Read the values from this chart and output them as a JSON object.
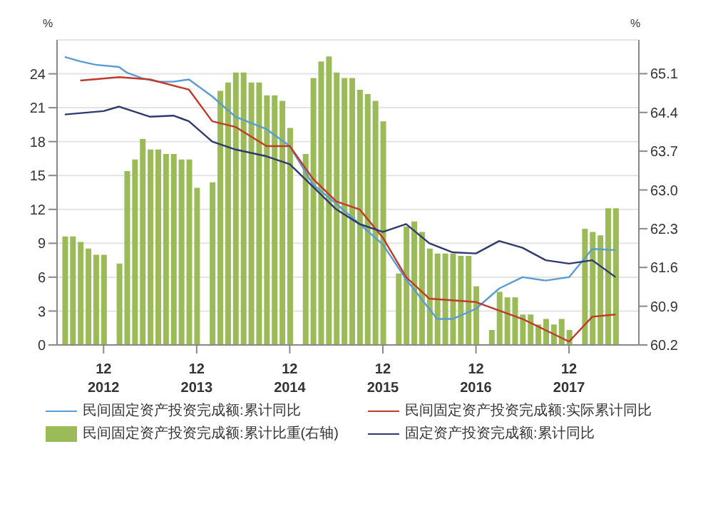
{
  "chart_data": {
    "type": "line",
    "ylabel": "%",
    "y2label": "%",
    "xlim": [
      "2012-06",
      "2018-09"
    ],
    "xticks": [
      {
        "value": "2012-12",
        "label": "12\n2012"
      },
      {
        "value": "2013-12",
        "label": "12\n2013"
      },
      {
        "value": "2014-12",
        "label": "12\n2014"
      },
      {
        "value": "2015-12",
        "label": "12\n2015"
      },
      {
        "value": "2016-12",
        "label": "12\n2016"
      },
      {
        "value": "2017-12",
        "label": "12\n2017"
      }
    ],
    "ylim": [
      0,
      27
    ],
    "yticks": [
      0,
      3,
      6,
      9,
      12,
      15,
      18,
      21,
      24
    ],
    "y2lim": [
      60.2,
      65.71
    ],
    "y2ticks": [
      60.2,
      60.9,
      61.6,
      62.3,
      {
        "value": 63,
        "label": "63.0"
      },
      63.7,
      64.4,
      65.1
    ],
    "grid": "y",
    "legend": "bottom",
    "marker": "none",
    "line_style": "solid",
    "series": [
      {
        "name": "民间固定资产投资完成额:累计同比",
        "color": "#5b9bd5",
        "x": [
          "2012-07",
          "2012-09",
          "2012-11",
          "2013-02",
          "2013-03",
          "2013-05",
          "2013-07",
          "2013-09",
          "2013-11",
          "2014-02",
          "2014-05",
          "2014-09",
          "2014-12",
          "2015-03",
          "2015-06",
          "2015-09",
          "2015-12",
          "2016-03",
          "2016-07",
          "2016-09",
          "2016-12",
          "2017-03",
          "2017-06",
          "2017-09",
          "2017-12",
          "2018-03",
          "2018-06"
        ],
        "values": [
          25.5,
          25.1,
          24.8,
          24.6,
          24.1,
          23.6,
          23.3,
          23.3,
          23.5,
          22.0,
          20.2,
          19.1,
          17.6,
          14.2,
          12.5,
          10.7,
          8.9,
          5.8,
          2.3,
          2.3,
          3.2,
          5.0,
          6.0,
          5.7,
          6.0,
          8.5,
          8.4
        ]
      },
      {
        "name": "民间固定资产投资完成额:实际累计同比",
        "color": "#c0392b",
        "x": [
          "2012-09",
          "2013-02",
          "2013-06",
          "2013-11",
          "2014-02",
          "2014-05",
          "2014-09",
          "2014-12",
          "2015-03",
          "2015-06",
          "2015-09",
          "2015-12",
          "2016-03",
          "2016-06",
          "2016-12",
          "2017-06",
          "2017-12",
          "2018-03",
          "2018-06"
        ],
        "values": [
          23.4,
          23.7,
          23.5,
          22.6,
          19.8,
          19.3,
          17.6,
          17.6,
          14.7,
          12.7,
          12.0,
          9.5,
          6.0,
          4.1,
          3.8,
          2.3,
          0.3,
          2.5,
          2.7
        ]
      },
      {
        "name": "民间固定资产投资完成额:累计比重(右轴)",
        "type": "bar",
        "axis": "y2",
        "color": "#9bbb59",
        "x": [
          "2012-07",
          "2012-08",
          "2012-09",
          "2012-10",
          "2012-11",
          "2012-12",
          "2013-02",
          "2013-03",
          "2013-04",
          "2013-05",
          "2013-06",
          "2013-07",
          "2013-08",
          "2013-09",
          "2013-10",
          "2013-11",
          "2013-12",
          "2014-02",
          "2014-03",
          "2014-04",
          "2014-05",
          "2014-06",
          "2014-07",
          "2014-08",
          "2014-09",
          "2014-10",
          "2014-11",
          "2014-12",
          "2015-02",
          "2015-03",
          "2015-04",
          "2015-05",
          "2015-06",
          "2015-07",
          "2015-08",
          "2015-09",
          "2015-10",
          "2015-11",
          "2015-12",
          "2016-02",
          "2016-03",
          "2016-04",
          "2016-05",
          "2016-06",
          "2016-07",
          "2016-08",
          "2016-09",
          "2016-10",
          "2016-11",
          "2016-12",
          "2017-02",
          "2017-03",
          "2017-04",
          "2017-05",
          "2017-06",
          "2017-07",
          "2017-08",
          "2017-09",
          "2017-10",
          "2017-11",
          "2017-12",
          "2018-02",
          "2018-03",
          "2018-04",
          "2018-05",
          "2018-06"
        ],
        "values": [
          62.16,
          62.16,
          62.06,
          61.94,
          61.83,
          61.83,
          61.67,
          63.34,
          63.55,
          63.92,
          63.73,
          63.73,
          63.65,
          63.65,
          63.55,
          63.55,
          63.04,
          63.14,
          64.79,
          64.94,
          65.12,
          65.12,
          64.94,
          64.94,
          64.71,
          64.71,
          64.61,
          64.12,
          63.65,
          65.02,
          65.32,
          65.41,
          65.12,
          65.02,
          65.02,
          64.81,
          64.73,
          64.61,
          64.24,
          61.49,
          62.34,
          62.43,
          62.24,
          61.94,
          61.85,
          61.85,
          61.85,
          61.81,
          61.81,
          61.26,
          60.47,
          61.16,
          61.06,
          61.06,
          60.75,
          60.75,
          60.57,
          60.67,
          60.57,
          60.67,
          60.47,
          62.3,
          62.24,
          62.18,
          62.67,
          62.67
        ]
      },
      {
        "name": "固定资产投资完成额:累计同比",
        "color": "#2e3a6e",
        "x": [
          "2012-07",
          "2012-12",
          "2013-02",
          "2013-06",
          "2013-09",
          "2013-11",
          "2014-02",
          "2014-05",
          "2014-09",
          "2014-12",
          "2015-03",
          "2015-06",
          "2015-09",
          "2015-12",
          "2016-03",
          "2016-06",
          "2016-09",
          "2016-12",
          "2017-03",
          "2017-06",
          "2017-09",
          "2017-12",
          "2018-03",
          "2018-06"
        ],
        "values": [
          20.4,
          20.7,
          21.1,
          20.2,
          20.3,
          19.8,
          18.0,
          17.3,
          16.7,
          16.0,
          14.0,
          12.0,
          10.7,
          10.0,
          10.7,
          9.0,
          8.2,
          8.1,
          9.2,
          8.6,
          7.5,
          7.2,
          7.5,
          6.0
        ]
      }
    ]
  }
}
